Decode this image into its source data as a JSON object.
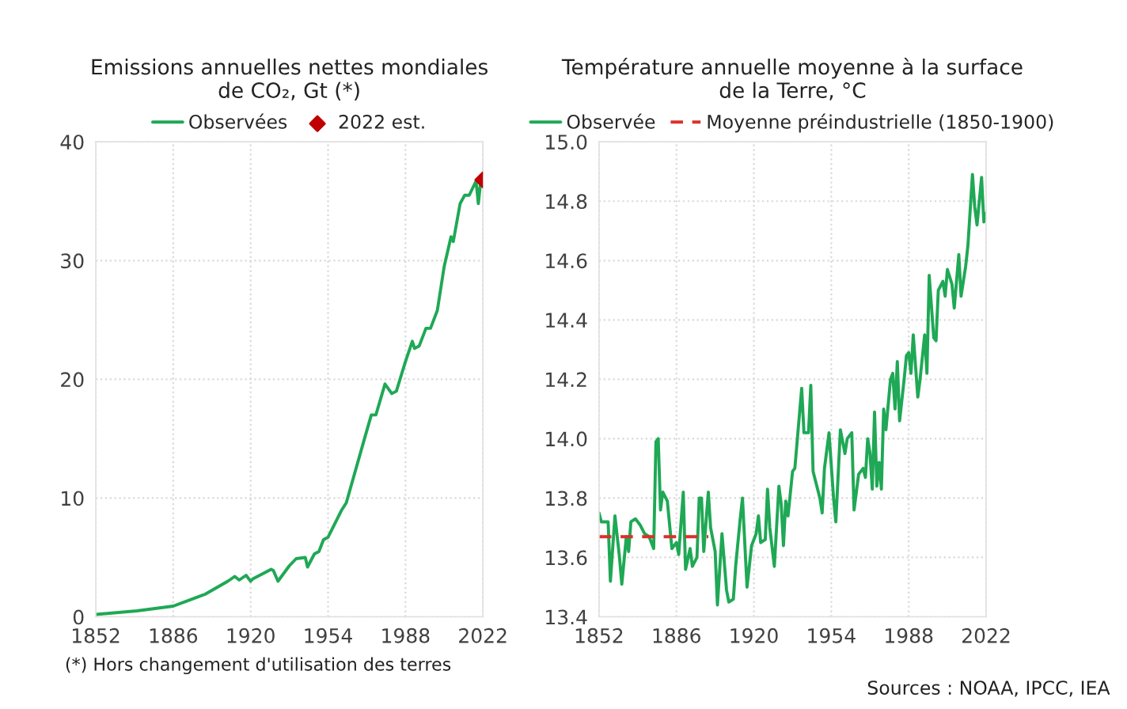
{
  "chart_data": [
    {
      "type": "line",
      "title": "Emissions annuelles nettes mondiales\nde CO₂, Gt (*)",
      "legend": "top",
      "grid": true,
      "xlim": [
        1852,
        2022
      ],
      "xticks": [
        1852,
        1886,
        1920,
        1954,
        1988,
        2022
      ],
      "ylim": [
        0,
        40
      ],
      "yticks": [
        0,
        10,
        20,
        30,
        40
      ],
      "annotations": [
        "(*) Hors changement d'utilisation des terres"
      ],
      "series": [
        {
          "name": "Observées",
          "color": "#1fa855",
          "marker": "none",
          "x": [
            1852,
            1870,
            1886,
            1900,
            1910,
            1913,
            1915,
            1918,
            1920,
            1921,
            1925,
            1929,
            1930,
            1932,
            1937,
            1940,
            1944,
            1945,
            1948,
            1950,
            1952,
            1954,
            1960,
            1962,
            1970,
            1973,
            1975,
            1979,
            1982,
            1984,
            1988,
            1991,
            1992,
            1994,
            1997,
            1999,
            2002,
            2005,
            2008,
            2009,
            2012,
            2014,
            2016,
            2019,
            2020,
            2021
          ],
          "values": [
            0.2,
            0.5,
            0.9,
            1.9,
            3.0,
            3.4,
            3.1,
            3.5,
            3.0,
            3.2,
            3.6,
            4.0,
            3.9,
            3.0,
            4.3,
            4.9,
            5.0,
            4.2,
            5.3,
            5.5,
            6.5,
            6.7,
            9.0,
            9.6,
            15.0,
            17.0,
            17.0,
            19.6,
            18.8,
            19.0,
            21.5,
            23.2,
            22.6,
            22.8,
            24.3,
            24.3,
            25.8,
            29.5,
            32.0,
            31.6,
            34.8,
            35.5,
            35.5,
            36.7,
            34.8,
            36.6
          ]
        },
        {
          "name": "2022 est.",
          "color": "#c00000",
          "type": "scatter",
          "marker": "diamond",
          "x": [
            2022
          ],
          "values": [
            36.8
          ]
        }
      ]
    },
    {
      "type": "line",
      "title": "Température annuelle moyenne à la surface\nde la Terre, °C",
      "legend": "top",
      "grid": true,
      "xlim": [
        1852,
        2022
      ],
      "xticks": [
        1852,
        1886,
        1920,
        1954,
        1988,
        2022
      ],
      "ylim": [
        13.4,
        15.0
      ],
      "yticks": [
        {
          "value": 13.4,
          "label": "13.4"
        },
        {
          "value": 13.6,
          "label": "13.6"
        },
        {
          "value": 13.8,
          "label": "13.8"
        },
        {
          "value": 14.0,
          "label": "14.0"
        },
        {
          "value": 14.2,
          "label": "14.2"
        },
        {
          "value": 14.4,
          "label": "14.4"
        },
        {
          "value": 14.6,
          "label": "14.6"
        },
        {
          "value": 14.8,
          "label": "14.8"
        },
        {
          "value": 15.0,
          "label": "15.0"
        }
      ],
      "annotations": [
        "Sources : NOAA, IPCC, IEA"
      ],
      "series": [
        {
          "name": "Observée",
          "color": "#1fa855",
          "line_style": "solid",
          "x": [
            1852,
            1853,
            1856,
            1857,
            1859,
            1861,
            1862,
            1864,
            1865,
            1866,
            1868,
            1870,
            1872,
            1874,
            1876,
            1877,
            1878,
            1879,
            1880,
            1882,
            1884,
            1886,
            1887,
            1889,
            1890,
            1892,
            1893,
            1895,
            1896,
            1897,
            1898,
            1900,
            1901,
            1903,
            1904,
            1906,
            1908,
            1909,
            1911,
            1912,
            1914,
            1915,
            1917,
            1919,
            1921,
            1922,
            1923,
            1925,
            1926,
            1927,
            1929,
            1931,
            1932,
            1933,
            1934,
            1935,
            1937,
            1938,
            1941,
            1942,
            1944,
            1945,
            1946,
            1947,
            1949,
            1950,
            1951,
            1953,
            1955,
            1956,
            1958,
            1960,
            1961,
            1963,
            1964,
            1966,
            1968,
            1969,
            1970,
            1971,
            1972,
            1973,
            1974,
            1975,
            1976,
            1977,
            1978,
            1980,
            1981,
            1982,
            1983,
            1984,
            1986,
            1987,
            1988,
            1989,
            1990,
            1992,
            1993,
            1995,
            1996,
            1997,
            1999,
            2000,
            2001,
            2003,
            2004,
            2005,
            2007,
            2008,
            2010,
            2011,
            2013,
            2014,
            2016,
            2017,
            2018,
            2020,
            2021,
            2022
          ],
          "values": [
            13.75,
            13.72,
            13.72,
            13.52,
            13.74,
            13.6,
            13.51,
            13.67,
            13.62,
            13.72,
            13.73,
            13.71,
            13.68,
            13.67,
            13.63,
            13.99,
            14.0,
            13.76,
            13.82,
            13.79,
            13.63,
            13.65,
            13.61,
            13.82,
            13.56,
            13.63,
            13.57,
            13.6,
            13.8,
            13.8,
            13.62,
            13.82,
            13.7,
            13.62,
            13.44,
            13.68,
            13.49,
            13.45,
            13.46,
            13.57,
            13.73,
            13.8,
            13.5,
            13.64,
            13.68,
            13.74,
            13.65,
            13.66,
            13.83,
            13.7,
            13.57,
            13.84,
            13.78,
            13.64,
            13.79,
            13.74,
            13.89,
            13.9,
            14.17,
            14.02,
            14.02,
            14.18,
            13.89,
            13.86,
            13.8,
            13.75,
            13.9,
            14.02,
            13.8,
            13.72,
            14.03,
            13.95,
            14.0,
            14.02,
            13.76,
            13.88,
            13.9,
            13.87,
            14.0,
            13.95,
            13.83,
            14.09,
            13.84,
            13.92,
            13.83,
            14.1,
            14.03,
            14.2,
            14.22,
            14.1,
            14.26,
            14.06,
            14.2,
            14.28,
            14.29,
            14.22,
            14.35,
            14.14,
            14.2,
            14.35,
            14.22,
            14.55,
            14.34,
            14.33,
            14.5,
            14.53,
            14.48,
            14.57,
            14.52,
            14.44,
            14.62,
            14.48,
            14.58,
            14.65,
            14.89,
            14.78,
            14.72,
            14.88,
            14.73,
            14.76
          ]
        },
        {
          "name": "Moyenne préindustrielle (1850-1900)",
          "color": "#d9312b",
          "line_style": "dashed",
          "x": [
            1852,
            1900
          ],
          "values": [
            13.67,
            13.67
          ]
        }
      ]
    }
  ]
}
